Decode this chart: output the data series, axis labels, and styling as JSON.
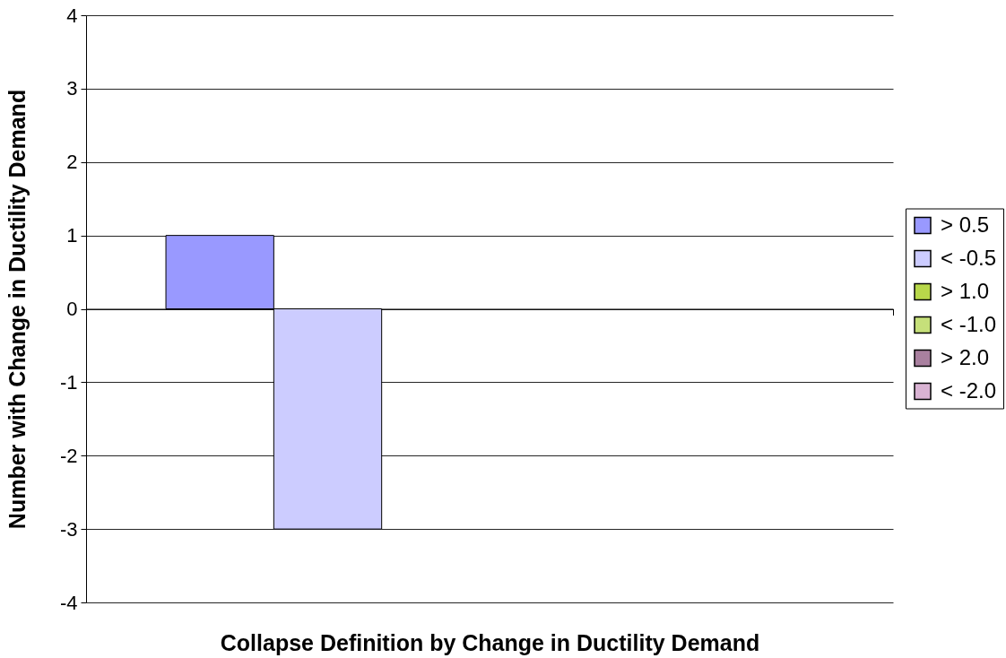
{
  "chart_data": {
    "type": "bar",
    "categories": [
      null
    ],
    "xlabel": "Collapse Definition by Change in Ductility Demand",
    "ylabel": "Number with Change in Ductility Demand",
    "series": [
      {
        "name": "> 0.5",
        "color": "#9999ff",
        "values": [
          1
        ]
      },
      {
        "name": "< -0.5",
        "color": "#ccccff",
        "values": [
          -3
        ]
      },
      {
        "name": "> 1.0",
        "color": "#b8d84a",
        "values": [
          null
        ]
      },
      {
        "name": "< -1.0",
        "color": "#c6e07a",
        "values": [
          null
        ]
      },
      {
        "name": "> 2.0",
        "color": "#a9809f",
        "values": [
          null
        ]
      },
      {
        "name": "< -2.0",
        "color": "#d9b3d3",
        "values": [
          null
        ]
      }
    ],
    "ylim": [
      -4,
      4
    ],
    "yticks": [
      -4,
      -3,
      -2,
      -1,
      0,
      1,
      2,
      3,
      4
    ],
    "grid": "y",
    "legend": "right",
    "tick_labels": "y"
  }
}
